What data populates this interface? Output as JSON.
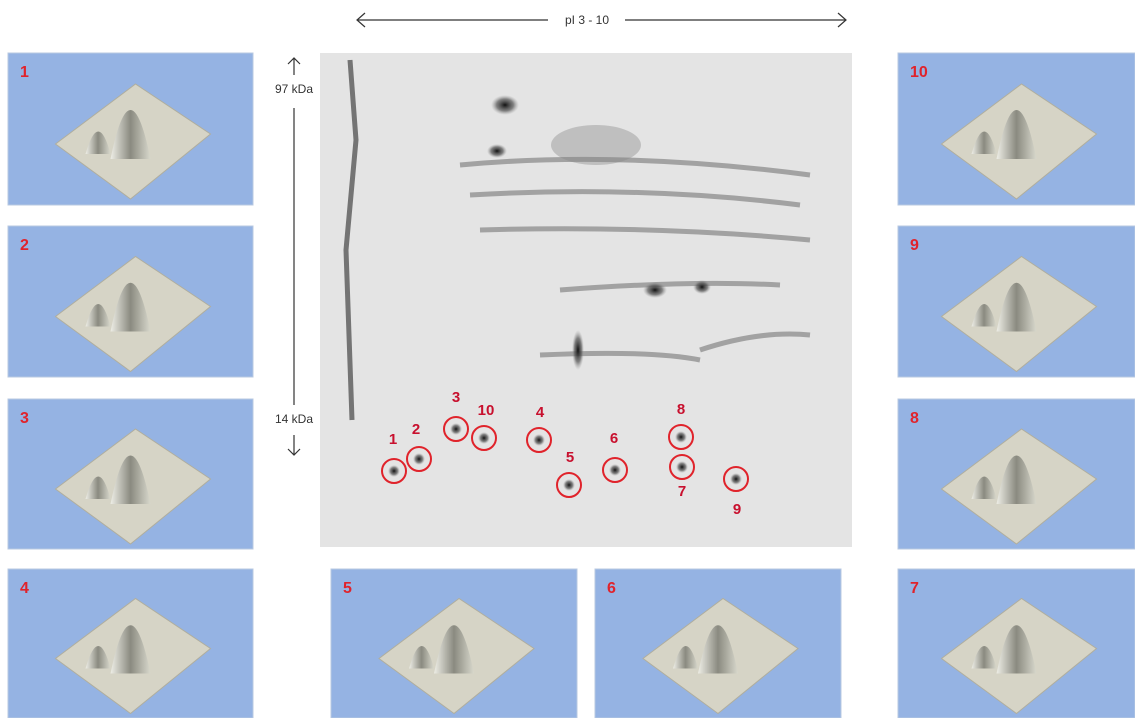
{
  "axis": {
    "pi_label": "pI 3 - 10",
    "top_mass": "97 kDa",
    "bottom_mass": "14 kDa"
  },
  "panels": [
    {
      "label": "1"
    },
    {
      "label": "2"
    },
    {
      "label": "3"
    },
    {
      "label": "4"
    },
    {
      "label": "5"
    },
    {
      "label": "6"
    },
    {
      "label": "10"
    },
    {
      "label": "9"
    },
    {
      "label": "8"
    },
    {
      "label": "7"
    }
  ],
  "spots": [
    {
      "label": "1"
    },
    {
      "label": "2"
    },
    {
      "label": "3"
    },
    {
      "label": "4"
    },
    {
      "label": "5"
    },
    {
      "label": "6"
    },
    {
      "label": "7"
    },
    {
      "label": "8"
    },
    {
      "label": "9"
    },
    {
      "label": "10"
    }
  ]
}
